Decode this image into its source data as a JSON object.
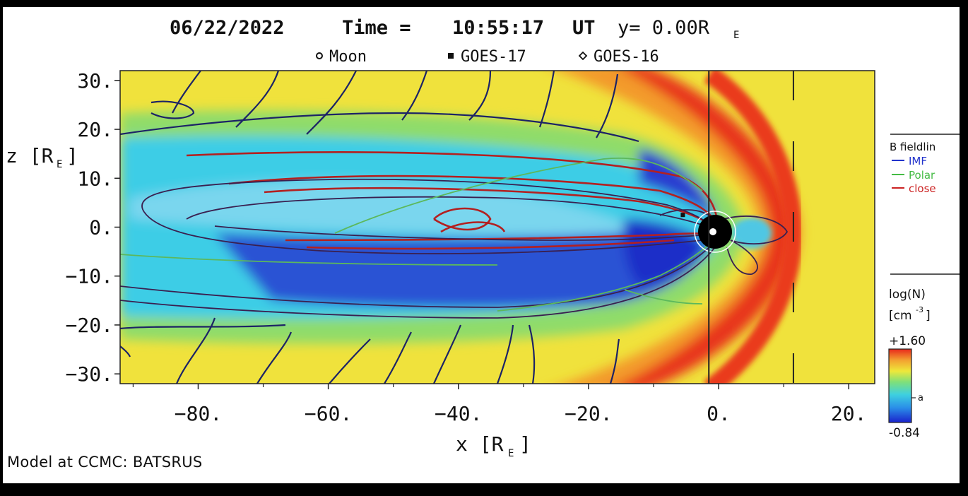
{
  "chart_data": {
    "type": "heatmap",
    "title_date": "06/22/2022",
    "title_time_label": "Time =",
    "title_time": "10:55:17",
    "title_ut": "UT",
    "title_y": "y= 0.00R",
    "title_y_sub": "E",
    "markers_legend": [
      {
        "symbol": "open-circle",
        "label": "Moon"
      },
      {
        "symbol": "filled-square",
        "label": "GOES-17"
      },
      {
        "symbol": "open-diamond",
        "label": "GOES-16"
      }
    ],
    "xlabel": "x [R",
    "xlabel_sub": "E",
    "xlabel_end": "]",
    "ylabel": "z [R",
    "ylabel_sub": "E",
    "ylabel_end": "]",
    "xlim": [
      -92,
      24
    ],
    "ylim": [
      -32,
      32
    ],
    "xticks": [
      {
        "value": -80,
        "label": "-80."
      },
      {
        "value": -60,
        "label": "-60."
      },
      {
        "value": -40,
        "label": "-40."
      },
      {
        "value": -20,
        "label": "-20."
      },
      {
        "value": 0,
        "label": "0."
      },
      {
        "value": 20,
        "label": "20."
      }
    ],
    "yticks": [
      {
        "value": 30,
        "label": "30."
      },
      {
        "value": 20,
        "label": "20."
      },
      {
        "value": 10,
        "label": "10."
      },
      {
        "value": 0,
        "label": "0."
      },
      {
        "value": -10,
        "label": "-10."
      },
      {
        "value": -20,
        "label": "-20."
      },
      {
        "value": -30,
        "label": "-30."
      }
    ],
    "fieldline_legend": {
      "title": "B fieldlin",
      "entries": [
        {
          "label": "IMF",
          "color": "#2233cc"
        },
        {
          "label": "Polar",
          "color": "#44bb44"
        },
        {
          "label": "close",
          "color": "#cc2222"
        }
      ]
    },
    "colorbar": {
      "title": "log(N)",
      "unit": "[cm",
      "unit_sup": "-3",
      "unit_end": "]",
      "max_label": "+1.60",
      "mid_label": "a",
      "min_label": "-0.84",
      "min": -0.84,
      "max": 1.6
    },
    "vertical_lines_x": [
      -1.5,
      11.5
    ],
    "spacecraft_positions": [
      {
        "name": "GOES-17",
        "x": -5.5,
        "z": 2.5
      }
    ],
    "earth": {
      "x": 0,
      "z": 0
    }
  },
  "footer": "Model at CCMC: BATSRUS",
  "colors": {
    "density_low": "#1a33cc",
    "density_mid": "#3ecbe8",
    "density_sw": "#f0e43a",
    "density_high": "#e8341c",
    "closed_field": "#b32020",
    "polar_field": "#5cb85c",
    "imf_field": "#1c2366"
  }
}
